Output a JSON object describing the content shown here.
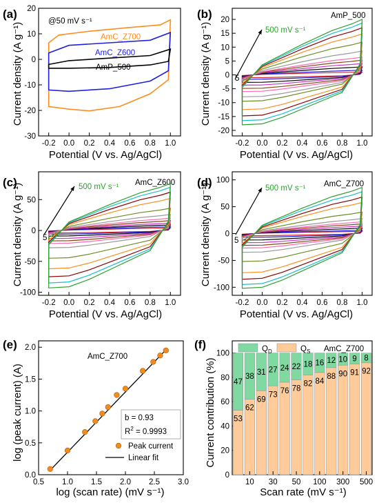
{
  "figure": {
    "panels": {
      "a": {
        "letter": "(a)",
        "ylabel": "Current density (A g⁻¹)",
        "xlabel": "Potential (V vs. Ag/AgCl)",
        "annotation": "@50 mV s⁻¹"
      },
      "b": {
        "letter": "(b)",
        "ylabel": "Current density (A g⁻¹)",
        "xlabel": "Potential (V vs. Ag/AgCl)",
        "sample": "AmP_500",
        "arrow_high": "500 mV s⁻¹",
        "arrow_low": "5"
      },
      "c": {
        "letter": "(c)",
        "ylabel": "Current density (A g⁻¹)",
        "xlabel": "Potential (V vs. Ag/AgCl)",
        "sample": "AmC_Z600",
        "arrow_high": "500 mV s⁻¹",
        "arrow_low": "5"
      },
      "d": {
        "letter": "(d)",
        "ylabel": "Current density (A g⁻¹)",
        "xlabel": "Potential (V vs. Ag/AgCl)",
        "sample": "AmC_Z700",
        "arrow_high": "500 mV s⁻¹",
        "arrow_low": "5"
      },
      "e": {
        "letter": "(e)",
        "ylabel": "log (peak current) (A)",
        "xlabel": "log (scan rate) (mV s⁻¹)",
        "sample": "AmC_Z700",
        "fit_b": "b = 0.93",
        "fit_r2_prefix": "R",
        "fit_r2_sup": "2",
        "fit_r2_value": " = 0.9993",
        "legend_points": "Peak current",
        "legend_line": "Linear fit"
      },
      "f": {
        "letter": "(f)",
        "ylabel": "Current contribution (%)",
        "xlabel": "Scan rate (mV s⁻¹)",
        "sample": "AmC_Z700",
        "legend_qd_main": "Q",
        "legend_qd_sub": "D",
        "legend_qs_main": "Q",
        "legend_qs_sub": "S"
      }
    },
    "colors": {
      "orange": "#ff8c1a",
      "blue": "#1f1fe0",
      "black": "#000000",
      "qd": "#7fd9a0",
      "qs": "#ffcc99",
      "marker": "#f28c1e"
    }
  },
  "chart_data": [
    {
      "id": "a",
      "type": "line",
      "xlim": [
        -0.3,
        1.1
      ],
      "ylim": [
        -30,
        20
      ],
      "xticks": [
        -0.2,
        0.0,
        0.2,
        0.4,
        0.6,
        0.8,
        1.0
      ],
      "xtick_labels": [
        "-0.2",
        "0.0",
        "0.2",
        "0.4",
        "0.6",
        "0.8",
        "1.0"
      ],
      "yticks": [
        -30,
        -20,
        -10,
        0,
        10,
        20
      ],
      "ytick_labels": [
        "-30",
        "-20",
        "-10",
        "0",
        "10",
        "20"
      ],
      "series": [
        {
          "name": "AmC_Z700",
          "color": "#ff8c1a",
          "top": [
            [
              -0.2,
              6.5
            ],
            [
              -0.1,
              9.5
            ],
            [
              0.2,
              11
            ],
            [
              0.6,
              12.5
            ],
            [
              0.9,
              13.5
            ],
            [
              1.0,
              15.5
            ]
          ],
          "bottom": [
            [
              -0.2,
              -18.5
            ],
            [
              0.0,
              -19.5
            ],
            [
              0.2,
              -20.2
            ],
            [
              0.5,
              -18.5
            ],
            [
              0.8,
              -13.5
            ],
            [
              0.98,
              -8
            ],
            [
              1.0,
              15.5
            ]
          ]
        },
        {
          "name": "AmC_Z600",
          "color": "#1f1fe0",
          "top": [
            [
              -0.2,
              2.5
            ],
            [
              0.0,
              5.5
            ],
            [
              0.4,
              6.5
            ],
            [
              0.8,
              7.5
            ],
            [
              1.0,
              10.5
            ]
          ],
          "bottom": [
            [
              -0.2,
              -12
            ],
            [
              0.0,
              -12.5
            ],
            [
              0.4,
              -11.5
            ],
            [
              0.8,
              -8.5
            ],
            [
              0.98,
              -4.5
            ],
            [
              1.0,
              10.5
            ]
          ]
        },
        {
          "name": "AmP_500",
          "color": "#000000",
          "top": [
            [
              -0.2,
              -2
            ],
            [
              0.0,
              -0.5
            ],
            [
              0.4,
              0.5
            ],
            [
              0.8,
              1.5
            ],
            [
              1.0,
              4
            ]
          ],
          "bottom": [
            [
              -0.2,
              -3.5
            ],
            [
              0.0,
              -3.5
            ],
            [
              0.4,
              -3.2
            ],
            [
              0.8,
              -2.2
            ],
            [
              0.98,
              -0.8
            ],
            [
              1.0,
              4
            ]
          ]
        }
      ]
    },
    {
      "id": "b",
      "type": "line",
      "xlim": [
        -0.3,
        1.1
      ],
      "ylim": [
        -22,
        24
      ],
      "xticks": [
        -0.2,
        0.0,
        0.2,
        0.4,
        0.6,
        0.8,
        1.0
      ],
      "xtick_labels": [
        "-0.2",
        "0.0",
        "0.2",
        "0.4",
        "0.6",
        "0.8",
        "1.0"
      ],
      "yticks": [
        -20,
        -15,
        -10,
        -5,
        0,
        5,
        10,
        15,
        20
      ],
      "ytick_labels": [
        "-20",
        "-15",
        "-10",
        "-5",
        "0",
        "5",
        "10",
        "15",
        "20"
      ],
      "scan_rates": [
        5,
        10,
        20,
        30,
        40,
        50,
        70,
        100,
        200,
        300,
        400,
        500
      ],
      "peak_anodic": [
        1.0,
        1.7,
        2.9,
        4.1,
        5.3,
        6.4,
        8.6,
        11.8,
        14.8,
        17.0,
        18.7,
        20.0
      ],
      "peak_cathodic": [
        -1.0,
        -1.6,
        -2.7,
        -3.7,
        -4.9,
        -6.0,
        -7.9,
        -9.5,
        -12.5,
        -14.8,
        -16.5,
        -18.0
      ]
    },
    {
      "id": "c",
      "type": "line",
      "xlim": [
        -0.3,
        1.1
      ],
      "ylim": [
        -105,
        95
      ],
      "xticks": [
        -0.2,
        0.0,
        0.2,
        0.4,
        0.6,
        0.8,
        1.0
      ],
      "xtick_labels": [
        "-0.2",
        "0.0",
        "0.2",
        "0.4",
        "0.6",
        "0.8",
        "1.0"
      ],
      "yticks": [
        -100,
        -50,
        0,
        50
      ],
      "ytick_labels": [
        "-100",
        "-50",
        "0",
        "50"
      ],
      "scan_rates": [
        5,
        10,
        20,
        30,
        40,
        50,
        70,
        100,
        200,
        300,
        400,
        500
      ],
      "peak_anodic": [
        4,
        6,
        9,
        12,
        16,
        20,
        26,
        36,
        52,
        62,
        70,
        76
      ],
      "peak_cathodic": [
        -4,
        -6,
        -9,
        -13,
        -17,
        -21,
        -28,
        -45,
        -62,
        -75,
        -85,
        -93
      ]
    },
    {
      "id": "d",
      "type": "line",
      "xlim": [
        -0.3,
        1.1
      ],
      "ylim": [
        -115,
        115
      ],
      "xticks": [
        -0.2,
        0.0,
        0.2,
        0.4,
        0.6,
        0.8,
        1.0
      ],
      "xtick_labels": [
        "-0.2",
        "0.0",
        "0.2",
        "0.4",
        "0.6",
        "0.8",
        "1.0"
      ],
      "yticks": [
        -100,
        -50,
        0,
        50,
        100
      ],
      "ytick_labels": [
        "-100",
        "-50",
        "0",
        "50",
        "100"
      ],
      "scan_rates": [
        5,
        10,
        20,
        30,
        40,
        50,
        70,
        100,
        200,
        300,
        400,
        500
      ],
      "peak_anodic": [
        4,
        6,
        10,
        14,
        18,
        22,
        28,
        40,
        58,
        68,
        78,
        86
      ],
      "peak_cathodic": [
        -4,
        -7,
        -12,
        -17,
        -22,
        -27,
        -35,
        -52,
        -73,
        -85,
        -95,
        -102
      ]
    },
    {
      "id": "e",
      "type": "scatter",
      "xlim": [
        0.5,
        3.0
      ],
      "ylim": [
        0.0,
        2.1
      ],
      "xticks": [
        0.5,
        1.0,
        1.5,
        2.0,
        2.5,
        3.0
      ],
      "xtick_labels": [
        "0.5",
        "1.0",
        "1.5",
        "2.0",
        "2.5",
        "3.0"
      ],
      "yticks": [
        0.0,
        0.5,
        1.0,
        1.5,
        2.0
      ],
      "ytick_labels": [
        "0.0",
        "0.5",
        "1.0",
        "1.5",
        "2.0"
      ],
      "series": [
        {
          "name": "Peak current",
          "x": [
            0.7,
            1.0,
            1.3,
            1.48,
            1.6,
            1.7,
            1.85,
            2.0,
            2.3,
            2.48,
            2.6,
            2.7
          ],
          "y": [
            0.09,
            0.38,
            0.67,
            0.84,
            0.96,
            1.06,
            1.25,
            1.35,
            1.63,
            1.77,
            1.87,
            1.95
          ]
        },
        {
          "name": "Linear fit",
          "x": [
            0.7,
            2.7
          ],
          "y": [
            0.07,
            1.96
          ]
        }
      ]
    },
    {
      "id": "f",
      "type": "bar",
      "stacked": true,
      "ylim": [
        0,
        110
      ],
      "yticks": [
        0,
        20,
        40,
        60,
        80,
        100
      ],
      "ytick_labels": [
        "0",
        "20",
        "40",
        "60",
        "80",
        "100"
      ],
      "categories": [
        "5",
        "10",
        "20",
        "30",
        "40",
        "50",
        "70",
        "100",
        "200",
        "300",
        "400",
        "500"
      ],
      "xtick_labels": [
        "10",
        "30",
        "50",
        "100",
        "300",
        "500"
      ],
      "xtick_indices": [
        1,
        3,
        5,
        7,
        9,
        11
      ],
      "series": [
        {
          "name": "QS",
          "values": [
            53,
            62,
            69,
            73,
            76,
            78,
            82,
            84,
            88,
            90,
            91,
            92
          ]
        },
        {
          "name": "QD",
          "values": [
            47,
            38,
            31,
            27,
            24,
            22,
            18,
            16,
            12,
            10,
            9,
            8
          ]
        }
      ]
    }
  ]
}
